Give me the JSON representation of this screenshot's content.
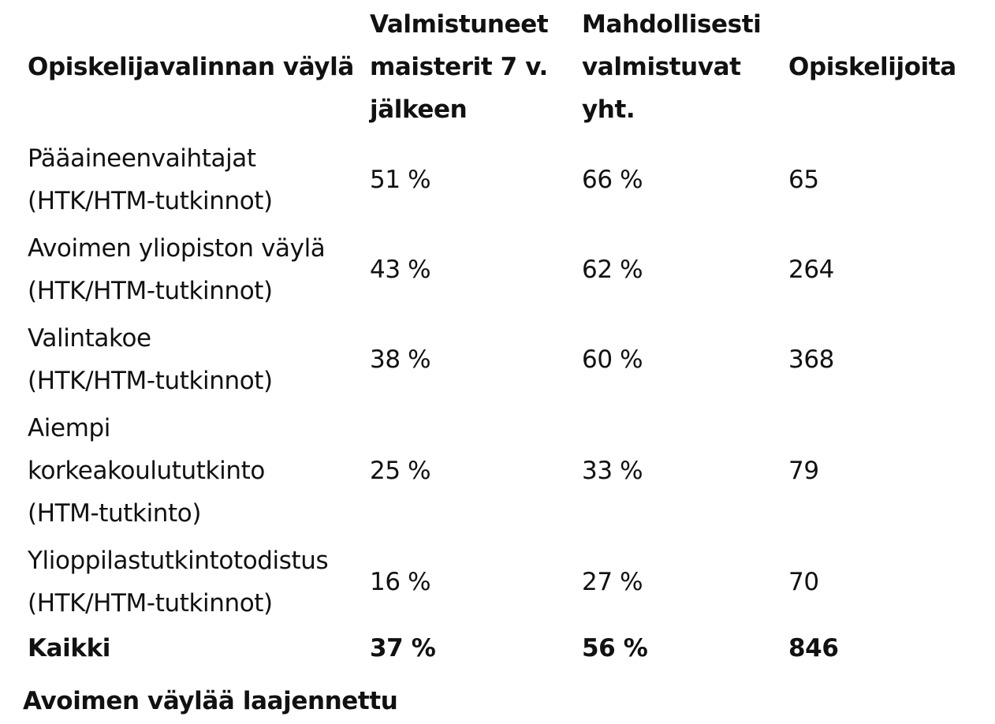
{
  "table": {
    "headers": [
      "Opiskelijavalinnan väylä",
      "Valmistuneet maisterit 7 v. jälkeen",
      "Mahdollisesti valmistuvat yht.",
      "Opiskelijoita"
    ],
    "rows": [
      {
        "path_line1": "Pääaineenvaihtajat",
        "path_line2": "(HTK/HTM-tutkinnot)",
        "graduated_7y": "51 %",
        "possibly_graduating": "66 %",
        "students": "65"
      },
      {
        "path_line1": "Avoimen yliopiston väylä",
        "path_line2": "(HTK/HTM-tutkinnot)",
        "graduated_7y": "43 %",
        "possibly_graduating": "62 %",
        "students": "264"
      },
      {
        "path_line1": "Valintakoe",
        "path_line2": "(HTK/HTM-tutkinnot)",
        "graduated_7y": "38 %",
        "possibly_graduating": "60 %",
        "students": "368"
      },
      {
        "path_line1": "Aiempi",
        "path_line2": "korkeakoulututkinto",
        "path_line3": "(HTM-tutkinto)",
        "graduated_7y": "25 %",
        "possibly_graduating": "33 %",
        "students": "79"
      },
      {
        "path_line1": "Ylioppilastutkintotodistus",
        "path_line2": "(HTK/HTM-tutkinnot)",
        "graduated_7y": "16 %",
        "possibly_graduating": "27 %",
        "students": "70"
      }
    ],
    "total": {
      "label": "Kaikki",
      "graduated_7y": "37 %",
      "possibly_graduating": "56 %",
      "students": "846"
    }
  },
  "subheading": "Avoimen väylää laajennettu"
}
